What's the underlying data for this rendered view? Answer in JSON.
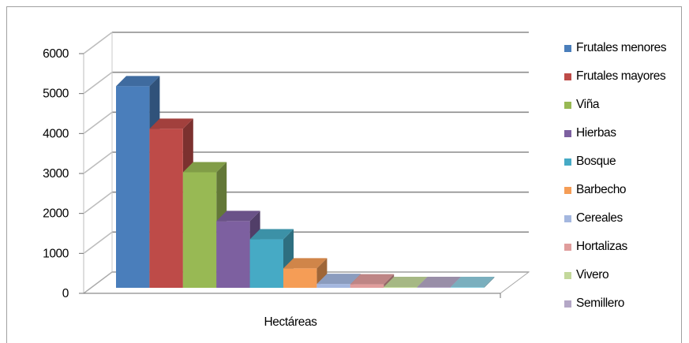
{
  "chart_data": {
    "type": "bar",
    "style": "3d-column",
    "categories": [
      "Hectáreas"
    ],
    "xlabel": "Hectáreas",
    "ylim": [
      0,
      6000
    ],
    "yticks": [
      0,
      1000,
      2000,
      3000,
      4000,
      5000,
      6000
    ],
    "grid": true,
    "legend_position": "right",
    "series": [
      {
        "name": "Frutales menores",
        "values": [
          5200
        ],
        "color": "#4a7ebb"
      },
      {
        "name": "Frutales mayores",
        "values": [
          4100
        ],
        "color": "#be4b48"
      },
      {
        "name": "Viña",
        "values": [
          2980
        ],
        "color": "#98b954"
      },
      {
        "name": "Hierbas",
        "values": [
          1720
        ],
        "color": "#7d60a0"
      },
      {
        "name": "Bosque",
        "values": [
          1250
        ],
        "color": "#46aac5"
      },
      {
        "name": "Barbecho",
        "values": [
          500
        ],
        "color": "#f59d56"
      },
      {
        "name": "Cereales",
        "values": [
          100
        ],
        "color": "#a4b7df"
      },
      {
        "name": "Hortalizas",
        "values": [
          90
        ],
        "color": "#e09d9c"
      },
      {
        "name": "Vivero",
        "values": [
          20
        ],
        "color": "#c3d89b"
      },
      {
        "name": "Semillero",
        "values": [
          15
        ],
        "color": "#b4a7c6"
      },
      {
        "name": "",
        "values": [
          10
        ],
        "color": "#8fcedf"
      }
    ]
  }
}
